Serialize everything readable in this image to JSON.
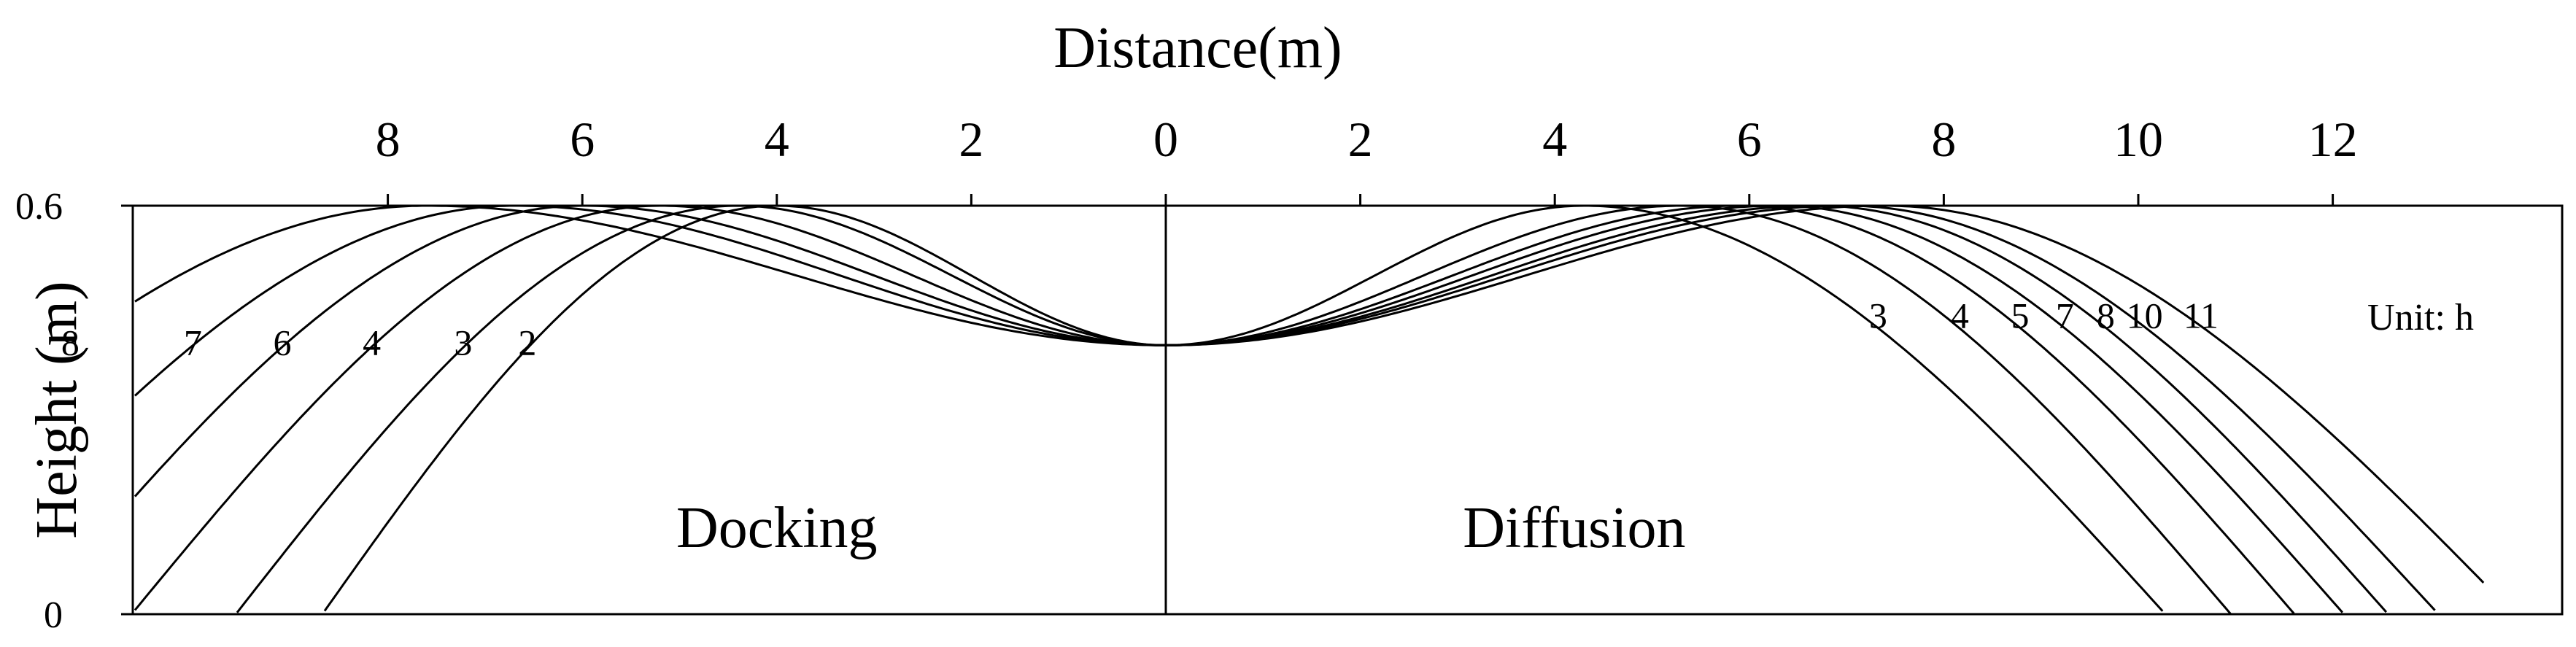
{
  "chart_data": {
    "type": "line",
    "xlabel": "Distance(m)",
    "ylabel": "Height (m)",
    "unit_note": "Unit: h",
    "ylim": [
      0,
      0.6
    ],
    "x_ticks": [
      {
        "value": -8,
        "label": "8"
      },
      {
        "value": -6,
        "label": "6"
      },
      {
        "value": -4,
        "label": "4"
      },
      {
        "value": -2,
        "label": "2"
      },
      {
        "value": 0,
        "label": "0"
      },
      {
        "value": 2,
        "label": "2"
      },
      {
        "value": 4,
        "label": "4"
      },
      {
        "value": 6,
        "label": "6"
      },
      {
        "value": 8,
        "label": "8"
      },
      {
        "value": 10,
        "label": "10"
      },
      {
        "value": 12,
        "label": "12"
      }
    ],
    "y_ticks": [
      {
        "value": 0,
        "label": "0"
      },
      {
        "value": 0.6,
        "label": "0.6"
      }
    ],
    "regions": [
      {
        "label": "Docking",
        "x": -4
      },
      {
        "label": "Diffusion",
        "x": 4.2
      }
    ],
    "divider_x": 0,
    "curve_shape": {
      "center_height": 0.395,
      "peak_height": 0.6
    },
    "docking": [
      {
        "label": "2",
        "peak_x": -4.0,
        "half_width": 4.3
      },
      {
        "label": "3",
        "peak_x": -4.4,
        "half_width": 4.75
      },
      {
        "label": "4",
        "peak_x": -5.2,
        "half_width": 5.0
      },
      {
        "label": "6",
        "peak_x": -6.0,
        "half_width": 5.2
      },
      {
        "label": "7",
        "peak_x": -6.7,
        "half_width": 5.6
      },
      {
        "label": "8",
        "peak_x": -7.6,
        "half_width": 6.2
      }
    ],
    "diffusion": [
      {
        "label": "3",
        "peak_x": 4.3,
        "half_width": 5.5
      },
      {
        "label": "4",
        "peak_x": 5.3,
        "half_width": 5.2
      },
      {
        "label": "5",
        "peak_x": 5.9,
        "half_width": 5.25
      },
      {
        "label": "7",
        "peak_x": 6.3,
        "half_width": 5.35
      },
      {
        "label": "8",
        "peak_x": 6.7,
        "half_width": 5.4
      },
      {
        "label": "10",
        "peak_x": 7.0,
        "half_width": 5.6
      },
      {
        "label": "11",
        "peak_x": 7.4,
        "half_width": 5.95
      }
    ]
  }
}
